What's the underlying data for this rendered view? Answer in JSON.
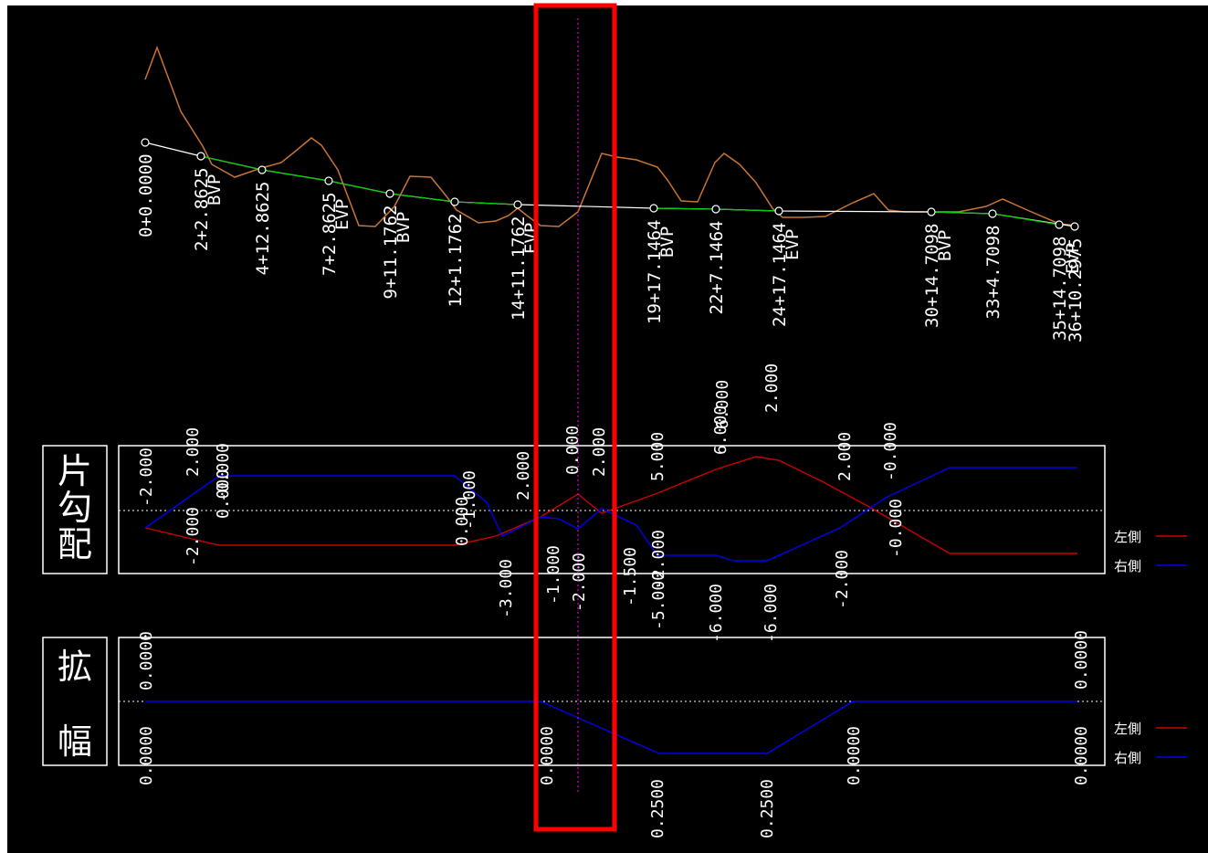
{
  "stations": [
    {
      "label": "0+0.0000",
      "sub": ""
    },
    {
      "label": "2+2.8625",
      "sub": "BVP"
    },
    {
      "label": "4+12.8625",
      "sub": ""
    },
    {
      "label": "7+2.8625",
      "sub": "EVP"
    },
    {
      "label": "9+11.1762",
      "sub": "BVP"
    },
    {
      "label": "12+1.1762",
      "sub": ""
    },
    {
      "label": "14+11.1762",
      "sub": "EVP"
    },
    {
      "label": "19+17.1464",
      "sub": "BVP"
    },
    {
      "label": "22+7.1464",
      "sub": ""
    },
    {
      "label": "24+17.1464",
      "sub": "EVP"
    },
    {
      "label": "30+14.7098",
      "sub": "BVP"
    },
    {
      "label": "33+4.7098",
      "sub": ""
    },
    {
      "label": "35+14.7098",
      "sub": "EVP"
    },
    {
      "label": "36+10.2975",
      "sub": ""
    }
  ],
  "superelevation": {
    "title": "片勾配",
    "legend_left": "左側",
    "legend_right": "右側",
    "labels_top": [
      "-2.000",
      "2.000",
      "-0.000",
      "0.000",
      "-1.000",
      "2.000",
      "0.000",
      "2.000",
      "5.000",
      "6.000",
      "6.000",
      "2.000",
      "2.000",
      "-0.000"
    ],
    "labels_bottom": [
      "-2.000",
      "0.000",
      "-3.000",
      "-1.000",
      "-2.000",
      "-1.500",
      "-2.000",
      "-5.000",
      "-6.000",
      "-6.000",
      "-2.000",
      "-0.000"
    ]
  },
  "widening": {
    "title_1": "拡",
    "title_2": "幅",
    "legend_left": "左側",
    "legend_right": "右側",
    "labels": [
      "0.0000",
      "0.0000",
      "0.0000",
      "0.2500",
      "0.2500",
      "0.0000",
      "0.0000"
    ]
  },
  "colors": {
    "background": "#000000",
    "ground_line": "#c87533",
    "alignment_line": "#ffffff",
    "vertical_curve": "#00cc00",
    "left_side": "#cc0000",
    "right_side": "#0000ee",
    "cursor": "#ff00ff",
    "highlight_box": "#ff0000"
  }
}
